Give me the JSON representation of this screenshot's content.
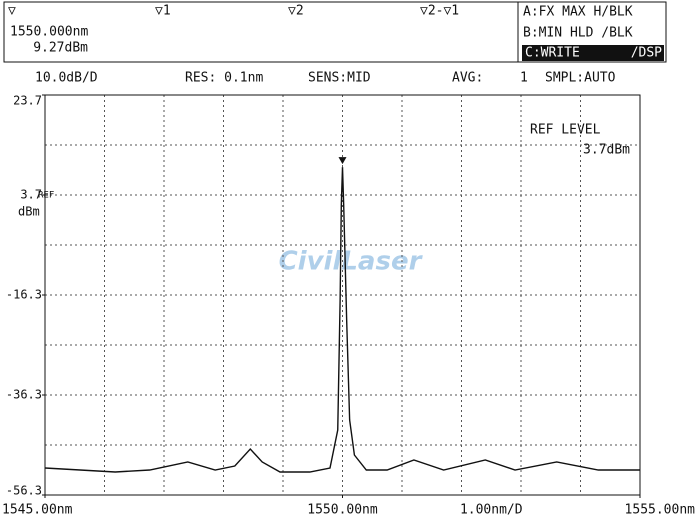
{
  "header": {
    "markers": [
      "▽",
      "▽1",
      "▽2",
      "▽2-▽1"
    ],
    "traces": [
      "A:FX MAX H/BLK",
      "B:MIN HLD /BLK"
    ],
    "trace_c": "C:WRITE",
    "trace_c_mode": "/DSP"
  },
  "status": [
    "10.0dB/D",
    "RES: 0.1nm",
    "SENS:MID",
    "AVG:",
    "1",
    "SMPL:AUTO"
  ],
  "watermark": "CivilLaser",
  "chart_data": {
    "type": "line",
    "x": [
      1545.0,
      1545.59,
      1546.18,
      1546.76,
      1547.4,
      1547.86,
      1548.19,
      1548.45,
      1548.65,
      1548.95,
      1549.45,
      1549.79,
      1549.92,
      1549.96,
      1549.98,
      1550.0,
      1550.02,
      1550.07,
      1550.12,
      1550.2,
      1550.4,
      1550.75,
      1551.2,
      1551.7,
      1552.4,
      1552.9,
      1553.6,
      1554.3,
      1555.0
    ],
    "values": [
      -50.9,
      -51.3,
      -51.7,
      -51.3,
      -49.7,
      -51.3,
      -50.5,
      -47.1,
      -49.7,
      -51.7,
      -51.7,
      -50.9,
      -43.3,
      -17.3,
      1.7,
      9.27,
      1.7,
      -21.3,
      -41.3,
      -48.3,
      -51.3,
      -51.3,
      -49.3,
      -51.3,
      -49.3,
      -51.3,
      -49.7,
      -51.3,
      -51.3
    ],
    "color": "#111111",
    "xlim": [
      1545,
      1555
    ],
    "xticks": [
      {
        "value": 1545,
        "label": "1545.00nm"
      },
      {
        "value": 1550,
        "label": "1550.00nm"
      },
      {
        "value": 1555,
        "label": "1555.00nm"
      }
    ],
    "xdiv": {
      "value": 1,
      "label": "1.00nm/D"
    },
    "ylim": [
      -56.3,
      23.7
    ],
    "yticks": [
      23.7,
      3.7,
      -16.3,
      -36.3,
      -56.3
    ],
    "ydiv": 10,
    "ylabel": "dBm",
    "grid": true,
    "marker": {
      "x": {
        "value": 1550,
        "label": "1550.000nm"
      },
      "y": {
        "value": 9.27,
        "label": "9.27dBm"
      }
    },
    "ref": {
      "title": "REF LEVEL",
      "tag": "REF",
      "value": 3.7,
      "label": "3.7dBm"
    }
  }
}
